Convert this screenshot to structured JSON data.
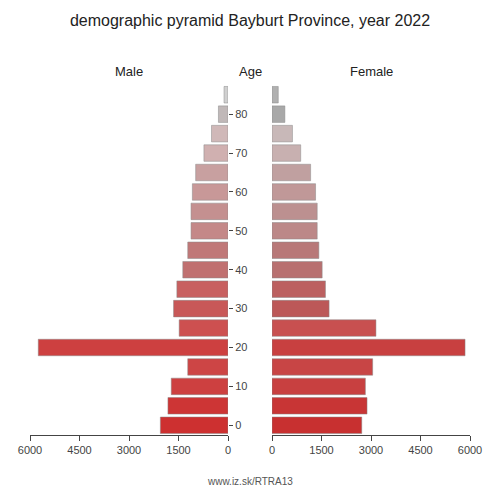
{
  "chart_data": {
    "type": "bar",
    "orientation": "horizontal",
    "title": "demographic pyramid Bayburt Province, year 2022",
    "ylabel": "Age",
    "categories": [
      "0",
      null,
      "10",
      null,
      "20",
      null,
      "30",
      null,
      "40",
      null,
      "50",
      null,
      "60",
      null,
      "70",
      null,
      "80",
      null
    ],
    "series": [
      {
        "name": "Male",
        "values": [
          2050,
          1820,
          1720,
          1220,
          5750,
          1480,
          1650,
          1550,
          1370,
          1220,
          1120,
          1120,
          1080,
          980,
          730,
          500,
          290,
          120
        ],
        "colors": [
          "#cd3030",
          "#cd3535",
          "#cd4040",
          "#cd4545",
          "#cd4040",
          "#cd5050",
          "#c85858",
          "#c86060",
          "#c07070",
          "#c07878",
          "#c48888",
          "#c49090",
          "#c89898",
          "#c8a0a0",
          "#d0b0b0",
          "#d0b8b8",
          "#c0b8b8",
          "#d0d0d0"
        ]
      },
      {
        "name": "Female",
        "values": [
          2720,
          2880,
          2830,
          3050,
          5850,
          3150,
          1730,
          1620,
          1520,
          1420,
          1370,
          1370,
          1320,
          1170,
          870,
          620,
          390,
          190
        ],
        "colors": [
          "#c83030",
          "#c83535",
          "#c84040",
          "#c84545",
          "#c84040",
          "#c85050",
          "#bc5858",
          "#bc6060",
          "#b87070",
          "#b87878",
          "#bc8888",
          "#bc9090",
          "#c09898",
          "#c0a0a0",
          "#c8b0b0",
          "#c8b8b8",
          "#a8a8a8",
          "#b0b0b0"
        ]
      }
    ],
    "xlim": [
      0,
      6000
    ],
    "xticks": [
      0,
      1500,
      3000,
      4500,
      6000
    ],
    "grid": false,
    "annotations": [
      "www.iz.sk/RTRA13"
    ]
  }
}
